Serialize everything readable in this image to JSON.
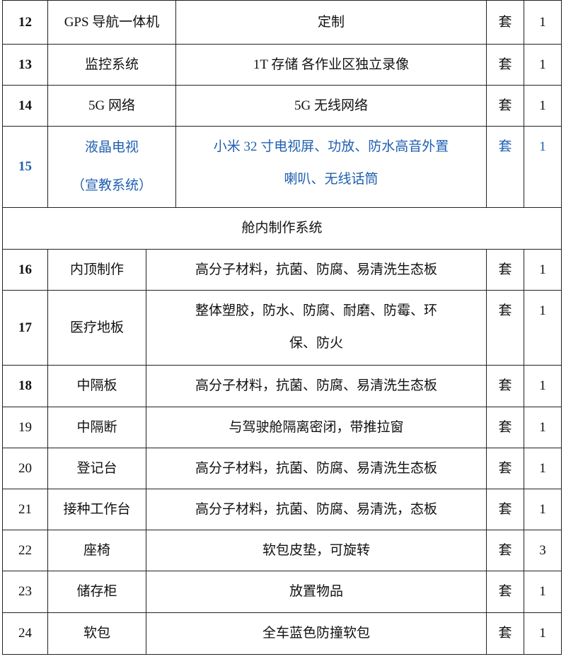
{
  "upper_rows": [
    {
      "no": "12",
      "name": [
        "GPS 导航一体机"
      ],
      "desc": [
        "定制"
      ],
      "unit": "套",
      "qty": "1",
      "bold_no": true
    },
    {
      "no": "13",
      "name": [
        "监控系统"
      ],
      "desc": [
        "1T  存储  各作业区独立录像"
      ],
      "unit": "套",
      "qty": "1",
      "bold_no": true
    },
    {
      "no": "14",
      "name": [
        "5G 网络"
      ],
      "desc": [
        "5G 无线网络"
      ],
      "unit": "套",
      "qty": "1",
      "bold_no": true
    },
    {
      "no": "15",
      "name": [
        "液晶电视",
        "（宣教系统）"
      ],
      "desc": [
        "小米 32 寸电视屏、功放、防水高音外置",
        "喇叭、无线话筒"
      ],
      "unit": "套",
      "qty": "1",
      "bold_no": true,
      "color": "#1f5fb0"
    }
  ],
  "section_title": "舱内制作系统",
  "lower_rows": [
    {
      "no": "16",
      "name": [
        "内顶制作"
      ],
      "desc": [
        "高分子材料，抗菌、防腐、易清洗生态板"
      ],
      "unit": "套",
      "qty": "1",
      "bold_no": true
    },
    {
      "no": "17",
      "name": [
        "医疗地板"
      ],
      "desc": [
        "整体塑胶，防水、防腐、耐磨、防霉、环",
        "保、防火"
      ],
      "unit": "套",
      "qty": "1",
      "bold_no": true
    },
    {
      "no": "18",
      "name": [
        "中隔板"
      ],
      "desc": [
        "高分子材料，抗菌、防腐、易清洗生态板"
      ],
      "unit": "套",
      "qty": "1",
      "bold_no": true
    },
    {
      "no": "19",
      "name": [
        "中隔断"
      ],
      "desc": [
        "与驾驶舱隔离密闭，带推拉窗"
      ],
      "unit": "套",
      "qty": "1"
    },
    {
      "no": "20",
      "name": [
        "登记台"
      ],
      "desc": [
        "高分子材料，抗菌、防腐、易清洗生态板"
      ],
      "unit": "套",
      "qty": "1"
    },
    {
      "no": "21",
      "name": [
        "接种工作台"
      ],
      "desc": [
        "高分子材料，抗菌、防腐、易清洗，态板"
      ],
      "unit": "套",
      "qty": "1"
    },
    {
      "no": "22",
      "name": [
        "座椅"
      ],
      "desc": [
        "软包皮垫，可旋转"
      ],
      "unit": "套",
      "qty": "3"
    },
    {
      "no": "23",
      "name": [
        "储存柜"
      ],
      "desc": [
        "放置物品"
      ],
      "unit": "套",
      "qty": "1"
    },
    {
      "no": "24",
      "name": [
        "软包"
      ],
      "desc": [
        "全车蓝色防撞软包"
      ],
      "unit": "套",
      "qty": "1"
    }
  ]
}
